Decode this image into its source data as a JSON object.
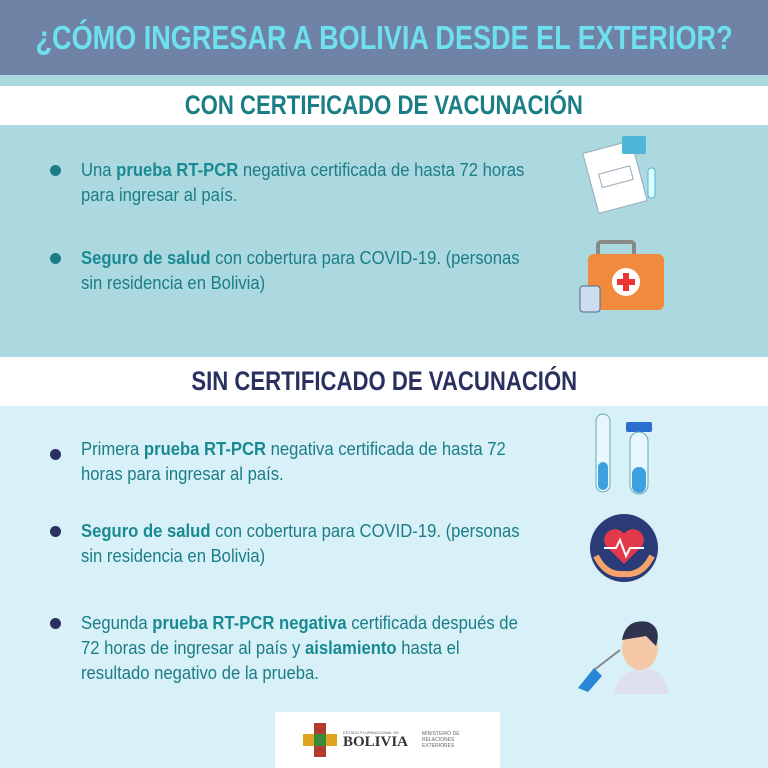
{
  "title": "¿CÓMO INGRESAR A BOLIVIA DESDE EL EXTERIOR?",
  "with_cert": {
    "heading": "CON CERTIFICADO DE VACUNACIÓN",
    "items": [
      {
        "pre": "Una ",
        "bold": "prueba RT-PCR",
        "post": " negativa certificada de hasta 72 horas para ingresar al país."
      },
      {
        "pre": "",
        "bold": "Seguro de salud",
        "post": " con cobertura para COVID-19. (personas sin residencia en Bolivia)"
      }
    ]
  },
  "without_cert": {
    "heading": "SIN CERTIFICADO DE VACUNACIÓN",
    "items": [
      {
        "pre": "Primera  ",
        "bold": "prueba RT-PCR",
        "post": " negativa certificada de hasta 72 horas para ingresar al país."
      },
      {
        "pre": "",
        "bold": "Seguro de salud",
        "post": " con cobertura para COVID-19. (personas sin residencia en Bolivia)"
      },
      {
        "pre": "Segunda ",
        "bold": "prueba RT-PCR negativa",
        "post": " certificada después de 72 horas de ingresar al país y ",
        "bold2": "aislamiento",
        "post2": " hasta el resultado negativo de la prueba."
      }
    ]
  },
  "footer": {
    "state": "ESTADO PLURINACIONAL DE",
    "country": "BOLIVIA",
    "ministry": "MINISTERIO DE RELACIONES EXTERIORES"
  },
  "colors": {
    "header_bg": "#6e83a6",
    "title": "#6fe0f0",
    "heading1": "#1b7d86",
    "heading2": "#2a3160",
    "section1_bg": "#acd8df",
    "section2_bg": "#d8f0f7"
  }
}
